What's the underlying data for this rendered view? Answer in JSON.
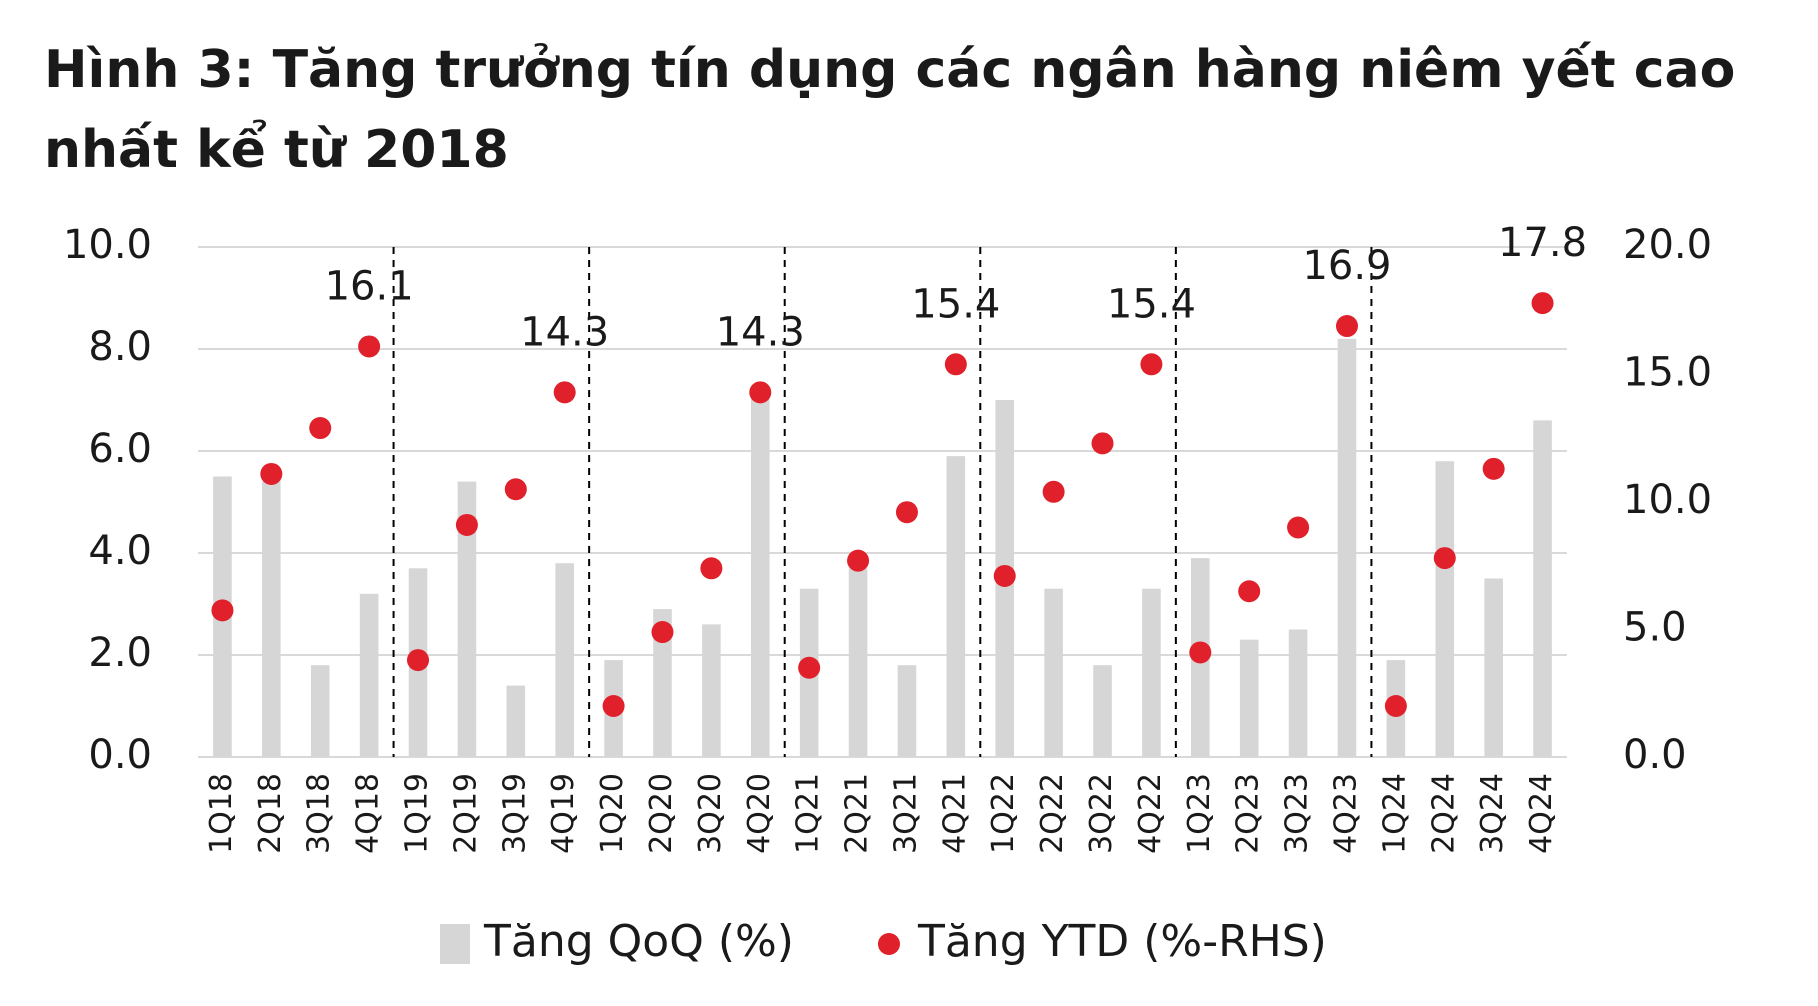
{
  "chart_data": {
    "type": "bar-scatter",
    "title": "Hình 3: Tăng trưởng tín dụng các ngân hàng niêm yết cao nhất kể từ 2018",
    "categories": [
      "1Q18",
      "2Q18",
      "3Q18",
      "4Q18",
      "1Q19",
      "2Q19",
      "3Q19",
      "4Q19",
      "1Q20",
      "2Q20",
      "3Q20",
      "4Q20",
      "1Q21",
      "2Q21",
      "3Q21",
      "4Q21",
      "1Q22",
      "2Q22",
      "3Q22",
      "4Q22",
      "1Q23",
      "2Q23",
      "3Q23",
      "4Q23",
      "1Q24",
      "2Q24",
      "3Q24",
      "4Q24"
    ],
    "series": [
      {
        "name": "Tăng QoQ (%)",
        "type": "bar",
        "color": "#d6d6d6",
        "values": [
          5.5,
          5.4,
          1.8,
          3.2,
          3.7,
          5.4,
          1.4,
          3.8,
          1.9,
          2.9,
          2.6,
          7.2,
          3.3,
          3.7,
          1.8,
          5.9,
          7.0,
          3.3,
          1.8,
          3.3,
          3.9,
          2.3,
          2.5,
          8.2,
          1.9,
          5.8,
          3.5,
          6.6
        ]
      },
      {
        "name": "Tăng YTD (%-RHS)",
        "type": "scatter",
        "axis": "y2",
        "color": "#e0202a",
        "values": [
          5.75,
          11.1,
          12.9,
          16.1,
          3.8,
          9.1,
          10.5,
          14.3,
          2.0,
          4.9,
          7.4,
          14.3,
          3.5,
          7.7,
          9.6,
          15.4,
          7.1,
          10.4,
          12.3,
          15.4,
          4.1,
          6.5,
          9.0,
          16.9,
          2.0,
          7.8,
          11.3,
          17.8
        ],
        "value_labels": [
          null,
          null,
          null,
          "16.1",
          null,
          null,
          null,
          "14.3",
          null,
          null,
          null,
          "14.3",
          null,
          null,
          null,
          "15.4",
          null,
          null,
          null,
          "15.4",
          null,
          null,
          null,
          "16.9",
          null,
          null,
          null,
          "17.8"
        ]
      }
    ],
    "ylim": [
      0,
      10
    ],
    "yticks": [
      {
        "value": 0,
        "label": "0.0"
      },
      {
        "value": 2,
        "label": "2.0"
      },
      {
        "value": 4,
        "label": "4.0"
      },
      {
        "value": 6,
        "label": "6.0"
      },
      {
        "value": 8,
        "label": "8.0"
      },
      {
        "value": 10,
        "label": "10.0"
      }
    ],
    "y2lim": [
      0,
      20
    ],
    "y2ticks": [
      {
        "value": 0,
        "label": "0.0"
      },
      {
        "value": 5,
        "label": "5.0"
      },
      {
        "value": 10,
        "label": "10.0"
      },
      {
        "value": 15,
        "label": "15.0"
      },
      {
        "value": 20,
        "label": "20.0"
      }
    ],
    "grid": true,
    "legend": "bottom"
  }
}
